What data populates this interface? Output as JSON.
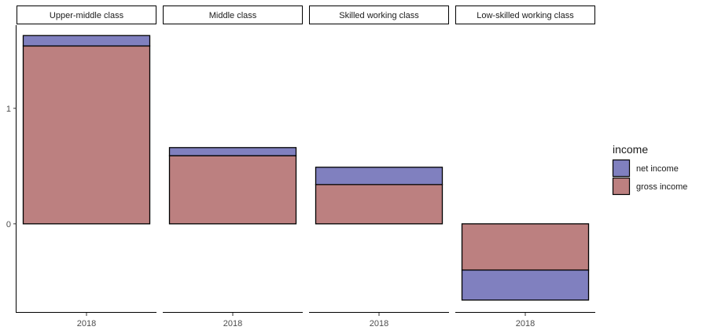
{
  "chart_data": {
    "type": "bar",
    "stacked": true,
    "facets": [
      {
        "label": "Upper-middle class",
        "category": "2018",
        "values": {
          "gross income": 1.54,
          "net income": 0.09
        }
      },
      {
        "label": "Middle class",
        "category": "2018",
        "values": {
          "gross income": 0.59,
          "net income": 0.07
        }
      },
      {
        "label": "Skilled working class",
        "category": "2018",
        "values": {
          "gross income": 0.34,
          "net income": 0.15
        }
      },
      {
        "label": "Low-skilled working class",
        "category": "2018",
        "values": {
          "gross income": -0.4,
          "net income": -0.26
        }
      }
    ],
    "series": [
      {
        "name": "net income",
        "color": "#8080bf"
      },
      {
        "name": "gross income",
        "color": "#bc8080"
      }
    ],
    "legend": {
      "title": "income",
      "placement": "right"
    },
    "y_ticks": [
      "0",
      "1"
    ],
    "y_tick_values": [
      0,
      1
    ],
    "ylim": [
      -0.77,
      1.72
    ],
    "grid": false
  }
}
